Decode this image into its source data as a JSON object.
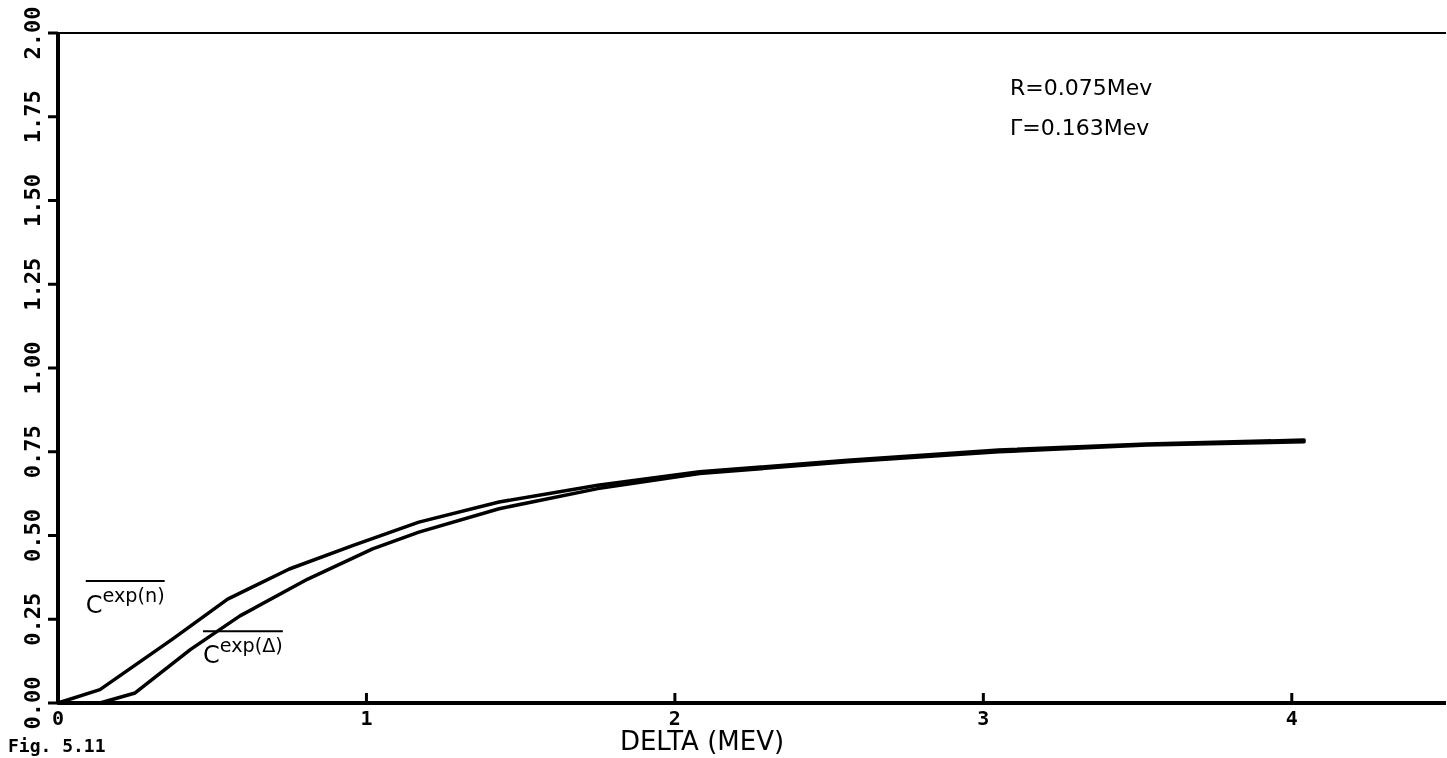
{
  "chart_data": {
    "type": "line",
    "xlabel": "DELTA (MEV)",
    "xlim": [
      0,
      4.5
    ],
    "xticks": [
      0,
      1,
      2,
      3,
      4
    ],
    "ylim": [
      0,
      2
    ],
    "yticks": [
      {
        "value": 0,
        "label": "0.00"
      },
      {
        "value": 0.25,
        "label": "0.25"
      },
      {
        "value": 0.5,
        "label": "0.50"
      },
      {
        "value": 0.75,
        "label": "0.75"
      },
      {
        "value": 1,
        "label": "1.00"
      },
      {
        "value": 1.25,
        "label": "1.25"
      },
      {
        "value": 1.5,
        "label": "1.50"
      },
      {
        "value": 1.75,
        "label": "1.75"
      },
      {
        "value": 2,
        "label": "2.00"
      }
    ],
    "grid": false,
    "legend": "bottom left",
    "marker": "none",
    "line_style": "solid",
    "annotations": [
      "R=0.075Mev",
      "Γ=0.163Mev",
      "Fig. 5.11"
    ],
    "series": [
      {
        "name": "C$^{exp(n)}$",
        "color": "#000000",
        "x": [
          0,
          0.136,
          0.37,
          0.55,
          0.75,
          0.955,
          1.17,
          1.43,
          1.75,
          2.08,
          2.56,
          3.05,
          3.53,
          4.04
        ],
        "values": [
          0,
          0.04,
          0.19,
          0.31,
          0.4,
          0.47,
          0.54,
          0.6,
          0.65,
          0.69,
          0.725,
          0.755,
          0.773,
          0.785
        ]
      },
      {
        "name": "C$^{exp(Δ)}$",
        "color": "#000000",
        "x": [
          0.136,
          0.25,
          0.43,
          0.59,
          0.81,
          1.02,
          1.17,
          1.43,
          1.75,
          2.08,
          2.56,
          3.05,
          3.53,
          4.04
        ],
        "values": [
          0,
          0.03,
          0.16,
          0.26,
          0.37,
          0.46,
          0.51,
          0.58,
          0.64,
          0.685,
          0.72,
          0.75,
          0.77,
          0.78
        ]
      }
    ]
  }
}
